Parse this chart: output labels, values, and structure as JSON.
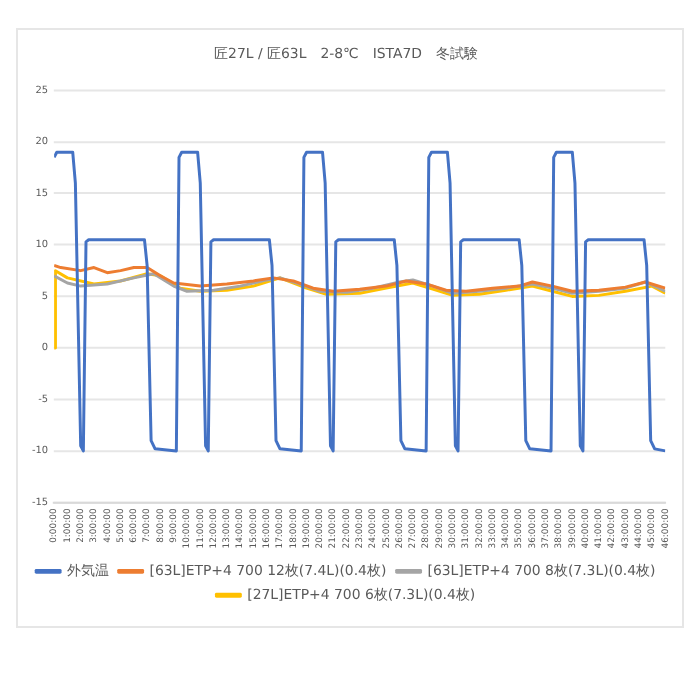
{
  "chart_data": {
    "type": "line",
    "title": "匠27L / 匠63L　2-8℃　ISTA7D　冬試験",
    "x": [
      0,
      0.2,
      1.4,
      1.6,
      2,
      2.2,
      2.4,
      2.6,
      6.8,
      7,
      7.3,
      7.6,
      9.2,
      9.4,
      9.6,
      10.8,
      11,
      11.4,
      11.6,
      11.8,
      12,
      16.2,
      16.4,
      16.7,
      17,
      18.6,
      18.8,
      19,
      20.2,
      20.4,
      20.8,
      21,
      21.2,
      21.4,
      25.6,
      25.8,
      26.1,
      26.4,
      28,
      28.2,
      28.4,
      29.6,
      29.8,
      30.2,
      30.4,
      30.6,
      30.8,
      35,
      35.2,
      35.5,
      35.8,
      37.4,
      37.6,
      37.8,
      39,
      39.2,
      39.6,
      39.8,
      40,
      40.2,
      44.4,
      44.6,
      44.9,
      45.2,
      46
    ],
    "series": [
      {
        "name": "外気温",
        "color": "#4472c4",
        "values": [
          18.5,
          19,
          19,
          16,
          -9.5,
          -10,
          10.3,
          10.5,
          10.5,
          8,
          -9,
          -9.8,
          -10,
          18.5,
          19,
          19,
          16,
          -9.5,
          -10,
          10.3,
          10.5,
          10.5,
          8,
          -9,
          -9.8,
          -10,
          18.5,
          19,
          19,
          16,
          -9.5,
          -10,
          10.3,
          10.5,
          10.5,
          8,
          -9,
          -9.8,
          -10,
          18.5,
          19,
          19,
          16,
          -9.5,
          -10,
          10.3,
          10.5,
          10.5,
          8,
          -9,
          -9.8,
          -10,
          18.5,
          19,
          19,
          16,
          -9.5,
          -10,
          10.3,
          10.5,
          10.5,
          8,
          -9,
          -9.8,
          -10
        ]
      },
      {
        "name": "[63L]ETP+4 700 12枚(7.4L)(0.4枚)",
        "color": "#ed7d31",
        "x": [
          0,
          0.5,
          2,
          3,
          4,
          5,
          6,
          7,
          8,
          9,
          11,
          13,
          15,
          16.5,
          18,
          19.5,
          21,
          23,
          25,
          26.5,
          28,
          29.5,
          31,
          33,
          35,
          36,
          37.5,
          39,
          41,
          43,
          44.5,
          46
        ],
        "values": [
          8,
          7.8,
          7.5,
          7.8,
          7.3,
          7.5,
          7.8,
          7.8,
          7,
          6.3,
          6,
          6.2,
          6.5,
          6.8,
          6.5,
          5.8,
          5.5,
          5.7,
          6,
          6.5,
          6.2,
          5.6,
          5.5,
          5.8,
          6,
          6.4,
          6,
          5.5,
          5.6,
          5.9,
          6.4,
          5.8
        ]
      },
      {
        "name": "[63L]ETP+4 700 8枚(7.3L)(0.4枚)",
        "color": "#a5a5a5",
        "x": [
          0,
          1,
          2,
          4,
          6,
          7.5,
          9,
          10,
          12,
          14,
          16,
          17,
          18.5,
          20,
          22,
          24,
          26,
          27,
          28.5,
          30,
          32,
          34,
          36,
          37.5,
          39,
          41,
          43,
          44.5,
          46
        ],
        "values": [
          7,
          6.3,
          6,
          6.2,
          6.8,
          7.2,
          6,
          5.5,
          5.6,
          6,
          6.6,
          6.8,
          6.2,
          5.5,
          5.4,
          5.8,
          6.4,
          6.6,
          6,
          5.3,
          5.5,
          5.8,
          6.2,
          5.8,
          5.3,
          5.5,
          5.8,
          6.4,
          5.5
        ]
      },
      {
        "name": "[27L]ETP+4 700 6枚(7.3L)(0.4枚)",
        "color": "#ffc000",
        "x": [
          0,
          0.1,
          1,
          3,
          5,
          7,
          8,
          9.5,
          11,
          13,
          15,
          17,
          19,
          20.5,
          23,
          25,
          27,
          28.5,
          30,
          32,
          34,
          36,
          37.5,
          39,
          41,
          43,
          45,
          46
        ],
        "values": [
          0,
          7.5,
          6.8,
          6.2,
          6.5,
          7.2,
          7,
          5.8,
          5.5,
          5.6,
          6,
          6.8,
          5.8,
          5.2,
          5.3,
          5.8,
          6.3,
          5.7,
          5.1,
          5.2,
          5.6,
          6,
          5.5,
          5,
          5.1,
          5.5,
          6,
          5.3
        ]
      }
    ],
    "xlim": [
      0,
      46
    ],
    "xticks": [
      {
        "value": 0,
        "label": "0:00:00"
      },
      {
        "value": 1,
        "label": "1:00:00"
      },
      {
        "value": 2,
        "label": "2:00:00"
      },
      {
        "value": 3,
        "label": "3:00:00"
      },
      {
        "value": 4,
        "label": "4:00:00"
      },
      {
        "value": 5,
        "label": "5:00:00"
      },
      {
        "value": 6,
        "label": "6:00:00"
      },
      {
        "value": 7,
        "label": "7:00:00"
      },
      {
        "value": 8,
        "label": "8:00:00"
      },
      {
        "value": 9,
        "label": "9:00:00"
      },
      {
        "value": 10,
        "label": "10:00:00"
      },
      {
        "value": 11,
        "label": "11:00:00"
      },
      {
        "value": 12,
        "label": "12:00:00"
      },
      {
        "value": 13,
        "label": "13:00:00"
      },
      {
        "value": 14,
        "label": "14:00:00"
      },
      {
        "value": 15,
        "label": "15:00:00"
      },
      {
        "value": 16,
        "label": "16:00:00"
      },
      {
        "value": 17,
        "label": "17:00:00"
      },
      {
        "value": 18,
        "label": "18:00:00"
      },
      {
        "value": 19,
        "label": "19:00:00"
      },
      {
        "value": 20,
        "label": "20:00:00"
      },
      {
        "value": 21,
        "label": "21:00:00"
      },
      {
        "value": 22,
        "label": "22:00:00"
      },
      {
        "value": 23,
        "label": "23:00:00"
      },
      {
        "value": 24,
        "label": "24:00:00"
      },
      {
        "value": 25,
        "label": "25:00:00"
      },
      {
        "value": 26,
        "label": "26:00:00"
      },
      {
        "value": 27,
        "label": "27:00:00"
      },
      {
        "value": 28,
        "label": "28:00:00"
      },
      {
        "value": 29,
        "label": "29:00:00"
      },
      {
        "value": 30,
        "label": "30:00:00"
      },
      {
        "value": 31,
        "label": "31:00:00"
      },
      {
        "value": 32,
        "label": "32:00:00"
      },
      {
        "value": 33,
        "label": "33:00:00"
      },
      {
        "value": 34,
        "label": "34:00:00"
      },
      {
        "value": 35,
        "label": "35:00:00"
      },
      {
        "value": 36,
        "label": "36:00:00"
      },
      {
        "value": 37,
        "label": "37:00:00"
      },
      {
        "value": 38,
        "label": "38:00:00"
      },
      {
        "value": 39,
        "label": "39:00:00"
      },
      {
        "value": 40,
        "label": "40:00:00"
      },
      {
        "value": 41,
        "label": "41:00:00"
      },
      {
        "value": 42,
        "label": "42:00:00"
      },
      {
        "value": 43,
        "label": "43:00:00"
      },
      {
        "value": 44,
        "label": "44:00:00"
      },
      {
        "value": 45,
        "label": "45:00:00"
      },
      {
        "value": 46,
        "label": "46:00:00"
      }
    ],
    "ylim": [
      -15,
      25
    ],
    "yticks": [
      -15,
      -10,
      -5,
      0,
      5,
      10,
      15,
      20,
      25
    ],
    "grid": "y",
    "legend": "bottom",
    "marker": "none",
    "line_style": "solid"
  }
}
